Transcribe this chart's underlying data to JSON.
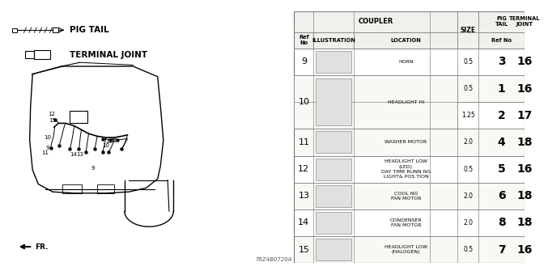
{
  "part_number": "T6Z4B0720A",
  "bg_color": "#ffffff",
  "border_color": "#666666",
  "text_color": "#111111",
  "table": {
    "rows": [
      {
        "ref": "9",
        "location": "HORN",
        "size1": "0.5",
        "size2": "",
        "pig1": "3",
        "pig2": "",
        "term1": "16",
        "term2": ""
      },
      {
        "ref": "10",
        "location": "HEADLIGHT HI",
        "size1": "0.5",
        "size2": "1.25",
        "pig1": "1",
        "pig2": "2",
        "term1": "16",
        "term2": "17"
      },
      {
        "ref": "11",
        "location": "WASHER MOTOR",
        "size1": "2.0",
        "size2": "",
        "pig1": "4",
        "pig2": "",
        "term1": "18",
        "term2": ""
      },
      {
        "ref": "12",
        "location": "HEADLIGHT LOW\n(LED)\nDAY TIME RUNN NG\nLIGHT& POS TION",
        "size1": "0.5",
        "size2": "",
        "pig1": "5",
        "pig2": "",
        "term1": "16",
        "term2": ""
      },
      {
        "ref": "13",
        "location": "COOL NG\nFAN MOTOR",
        "size1": "2.0",
        "size2": "",
        "pig1": "6",
        "pig2": "",
        "term1": "18",
        "term2": ""
      },
      {
        "ref": "14",
        "location": "CONDENSER\nFAN MOTOR",
        "size1": "2.0",
        "size2": "",
        "pig1": "8",
        "pig2": "",
        "term1": "18",
        "term2": ""
      },
      {
        "ref": "15",
        "location": "HEADLIGHT LOW\n(HALOGEN)",
        "size1": "0.5",
        "size2": "",
        "pig1": "7",
        "pig2": "",
        "term1": "16",
        "term2": ""
      }
    ]
  }
}
